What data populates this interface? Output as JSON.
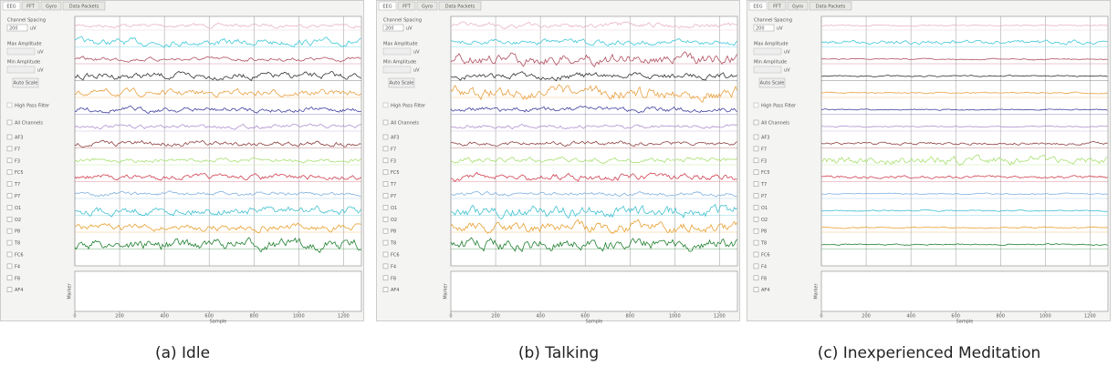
{
  "panels": [
    {
      "caption": "(a) Idle"
    },
    {
      "caption": "(b) Talking"
    },
    {
      "caption": "(c) Inexperienced Meditation"
    }
  ],
  "tabs": [
    "EEG",
    "FFT",
    "Gyro",
    "Data Packets"
  ],
  "sidebar": {
    "channel_spacing": "Channel Spacing",
    "spacing_value": "200",
    "unit": "uV",
    "max_amplitude": "Max Amplitude",
    "min_amplitude": "Min Amplitude",
    "auto_scale": "Auto Scale",
    "high_pass_filter": "High Pass Filter",
    "all_channels": "All Channels"
  },
  "channels": [
    "AF3",
    "F7",
    "F3",
    "FC5",
    "T7",
    "P7",
    "O1",
    "O2",
    "P8",
    "T8",
    "FC6",
    "F4",
    "F8",
    "AF4"
  ],
  "marker": {
    "ylabel": "Marker",
    "xlabel": "Sample",
    "xlim": [
      0,
      1280
    ],
    "xticks": [
      0,
      200,
      400,
      600,
      800,
      1000,
      1200
    ]
  }
}
